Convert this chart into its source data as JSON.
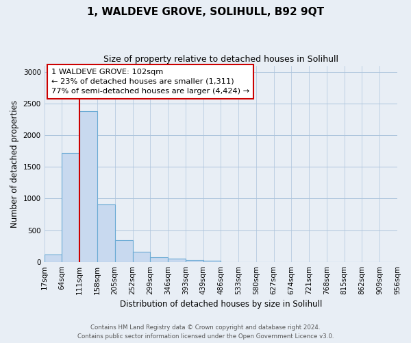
{
  "title": "1, WALDEVE GROVE, SOLIHULL, B92 9QT",
  "subtitle": "Size of property relative to detached houses in Solihull",
  "xlabel": "Distribution of detached houses by size in Solihull",
  "ylabel": "Number of detached properties",
  "bar_values": [
    120,
    1720,
    2380,
    910,
    340,
    155,
    75,
    55,
    30,
    15,
    0,
    0,
    0,
    0,
    0,
    0,
    0,
    0,
    0,
    0
  ],
  "bin_labels": [
    "17sqm",
    "64sqm",
    "111sqm",
    "158sqm",
    "205sqm",
    "252sqm",
    "299sqm",
    "346sqm",
    "393sqm",
    "439sqm",
    "486sqm",
    "533sqm",
    "580sqm",
    "627sqm",
    "674sqm",
    "721sqm",
    "768sqm",
    "815sqm",
    "862sqm",
    "909sqm",
    "956sqm"
  ],
  "bar_color": "#c8d9ef",
  "bar_edge_color": "#6aaad4",
  "vline_color": "#cc0000",
  "annotation_box_text": "1 WALDEVE GROVE: 102sqm\n← 23% of detached houses are smaller (1,311)\n77% of semi-detached houses are larger (4,424) →",
  "annotation_box_color": "#ffffff",
  "annotation_box_edge_color": "#cc0000",
  "ylim": [
    0,
    3100
  ],
  "yticks": [
    0,
    500,
    1000,
    1500,
    2000,
    2500,
    3000
  ],
  "grid_color": "#adc4dc",
  "background_color": "#e8eef5",
  "footer_line1": "Contains HM Land Registry data © Crown copyright and database right 2024.",
  "footer_line2": "Contains public sector information licensed under the Open Government Licence v3.0."
}
